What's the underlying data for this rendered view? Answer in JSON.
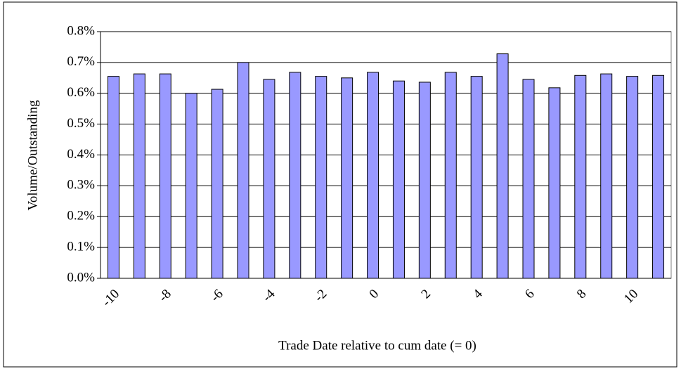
{
  "chart_data": {
    "type": "bar",
    "xlabel": "Trade Date relative to cum date (= 0)",
    "ylabel": "Volume/Outstanding",
    "categories": [
      "-10",
      null,
      "-8",
      null,
      "-6",
      null,
      "-4",
      null,
      "-2",
      null,
      "0",
      null,
      "2",
      null,
      "4",
      null,
      "6",
      null,
      "8",
      null,
      "10",
      null
    ],
    "values": [
      0.655,
      0.663,
      0.663,
      0.6,
      0.613,
      0.7,
      0.645,
      0.668,
      0.655,
      0.65,
      0.668,
      0.64,
      0.636,
      0.668,
      0.655,
      0.728,
      0.645,
      0.618,
      0.658,
      0.663,
      0.655,
      0.658
    ],
    "color": "#9999ff",
    "ylim": [
      0,
      0.8
    ],
    "yticks": [
      {
        "value": 0,
        "label": "0.0%"
      },
      {
        "value": 0.1,
        "label": "0.1%"
      },
      {
        "value": 0.2,
        "label": "0.2%"
      },
      {
        "value": 0.3,
        "label": "0.3%"
      },
      {
        "value": 0.4,
        "label": "0.4%"
      },
      {
        "value": 0.5,
        "label": "0.5%"
      },
      {
        "value": 0.6,
        "label": "0.6%"
      },
      {
        "value": 0.7,
        "label": "0.7%"
      },
      {
        "value": 0.8,
        "label": "0.8%"
      }
    ],
    "grid": true
  }
}
